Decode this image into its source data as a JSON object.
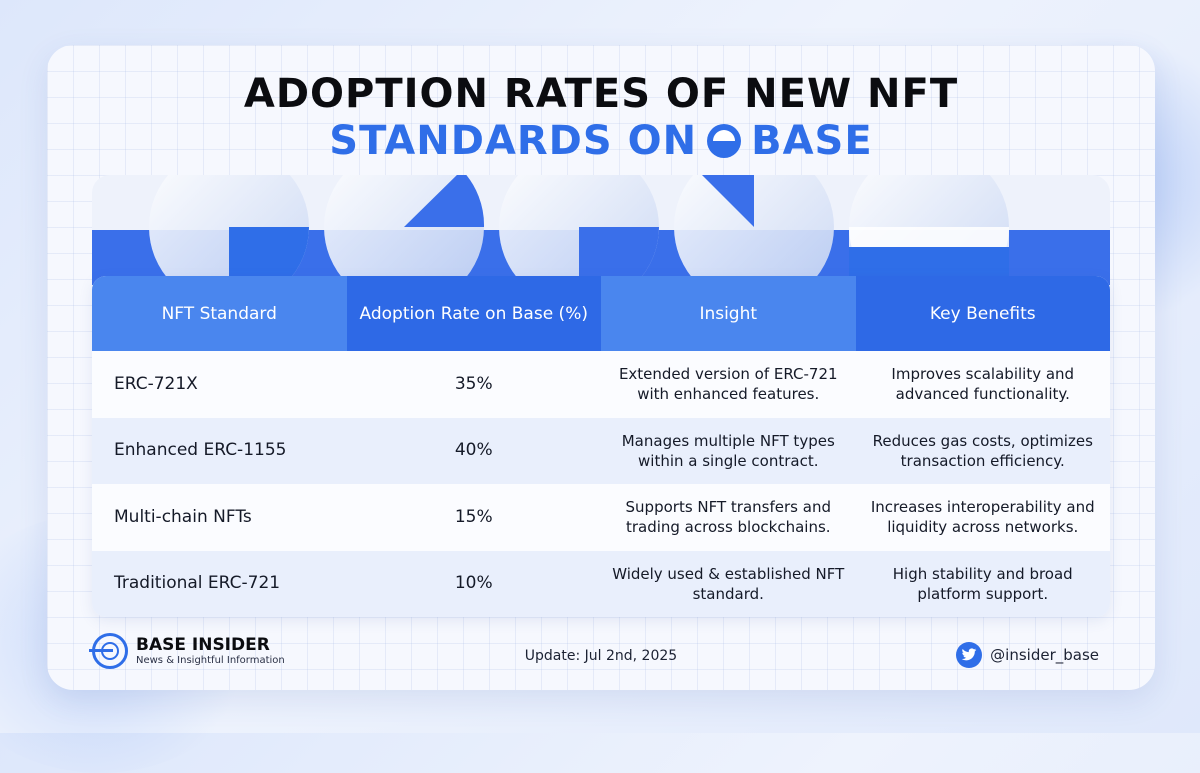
{
  "title": {
    "line1": "ADOPTION RATES OF NEW NFT",
    "line2_part1": "STANDARDS ON",
    "line2_part2": "BASE"
  },
  "table": {
    "headers": [
      "NFT Standard",
      "Adoption Rate on Base (%)",
      "Insight",
      "Key Benefits"
    ],
    "rows": [
      [
        "ERC-721X",
        "35%",
        "Extended version of ERC-721 with enhanced features.",
        "Improves scalability and advanced functionality."
      ],
      [
        "Enhanced ERC-1155",
        "40%",
        "Manages multiple NFT types within a single contract.",
        "Reduces gas costs, optimizes transaction efficiency."
      ],
      [
        "Multi-chain NFTs",
        "15%",
        "Supports NFT transfers and trading across blockchains.",
        "Increases interoperability and liquidity across networks."
      ],
      [
        "Traditional ERC-721",
        "10%",
        "Widely used & established NFT standard.",
        "High stability and broad platform support."
      ]
    ]
  },
  "footer": {
    "brand_name": "BASE INSIDER",
    "brand_tagline": "News & Insightful Information",
    "update": "Update: Jul 2nd, 2025",
    "handle": "@insider_base"
  },
  "icons": {
    "title_logo": "base-logo-icon",
    "brand_logo": "base-insider-logo-icon",
    "social": "twitter-icon"
  },
  "colors": {
    "accent": "#2f6ee8",
    "header_light": "#4a86ee",
    "header_dark": "#2e69e6",
    "title_text": "#0b0c10"
  }
}
